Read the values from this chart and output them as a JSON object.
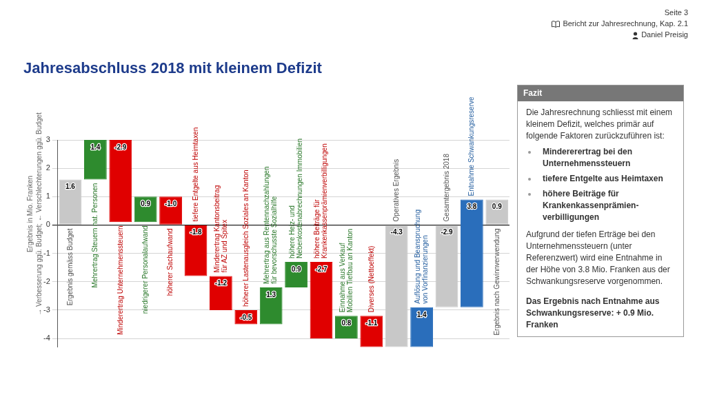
{
  "chart_data": {
    "type": "bar",
    "title": "Jahresabschluss 2018 mit kleinem Defizit",
    "ylabel": "Ergebnis in Mio. Franken\n→ Verbesserung ggü. Budget; ← Verschlechterungen ggü. Budget",
    "categories": [
      "Ergebnis gemäss Budget",
      "Mehrertrag Steuern nat. Personen",
      "Minderertrag Unternehmenssteuern",
      "niedrigerer Personalaufwand",
      "höherer Sachaufwand",
      "tiefere Entgelte aus Heimtaxen",
      "Minderertrag Kantonsbeitrag für AZ und Spitex",
      "höherer Lastenausgleich Soziales an Kanton",
      "Mehrertrag aus Rentennachzahlungen für bevorschusste Sozialhilfe",
      "höhere Heiz- und Nebenkostenabrechnungen Immobilien",
      "höhere Beiträge für Krankenkassenprämienverbilligungen",
      "Einnahme aus Verkauf Mobilien Tiefbau an Kanton",
      "Diverses (Nettoeffekt)",
      "Operatives Ergebnis",
      "Auflösung und Beanspruchung von Vorfinanzierungen",
      "Gesamtergebnis 2018",
      "Entnahme Schwankungsreserve",
      "Ergebnis nach Gewinnverwendung"
    ],
    "values": [
      1.6,
      1.4,
      -2.9,
      0.9,
      -1.0,
      -1.8,
      -1.2,
      -0.5,
      1.3,
      0.9,
      -2.7,
      0.8,
      -1.1,
      -4.3,
      1.4,
      -2.9,
      3.8,
      0.9
    ],
    "base": [
      0,
      1.6,
      3.0,
      0.1,
      1.0,
      0,
      -1.8,
      -3.0,
      -3.5,
      -2.2,
      -1.3,
      -4.0,
      -3.2,
      0,
      -4.3,
      0,
      -2.9,
      0
    ],
    "colors": [
      "#c8c8c8",
      "#2e8b2e",
      "#e00000",
      "#2e8b2e",
      "#e00000",
      "#e00000",
      "#e00000",
      "#e00000",
      "#2e8b2e",
      "#2e8b2e",
      "#e00000",
      "#2e8b2e",
      "#e00000",
      "#c8c8c8",
      "#2a6ebb",
      "#c8c8c8",
      "#2a6ebb",
      "#c8c8c8"
    ],
    "value_labels": [
      "1.6",
      "1.4",
      "-2.9",
      "0.9",
      "-1.0",
      "-1.8",
      "-1.2",
      "-0.5",
      "1.3",
      "0.9",
      "-2.7",
      "0.8",
      "-1.1",
      "-4.3",
      "1.4",
      "-2.9",
      "3.8",
      "0.9"
    ],
    "ylim": [
      -4.3,
      3
    ],
    "yticks": [
      -4,
      -3,
      -2,
      -1,
      0,
      1,
      2,
      3
    ],
    "grid": "y",
    "legend": false,
    "annotations": [
      "Seite 3",
      "Bericht zur Jahresrechnung, Kap. 2.1",
      "Daniel Preisig",
      "Fazit",
      "Die Jahresrechnung schliesst mit einem kleinem Defizit, welches primär auf folgende Faktoren zurückzuführen ist:",
      "Mindererertrag bei den Unternehmenssteuern",
      "tiefere Entgelte aus Heimtaxen",
      "höhere Beiträge für Krankenkassenprämien-verbilligungen",
      "Aufgrund der tiefen Erträge bei den Unternehmenssteuern (unter Referenzwert) wird eine Entnahme in der Höhe von 3.8 Mio. Franken aus der Schwankungsreserve vorgenommen.",
      "Das Ergebnis nach Entnahme aus Schwankungsreserve: + 0.9 Mio. Franken"
    ]
  }
}
